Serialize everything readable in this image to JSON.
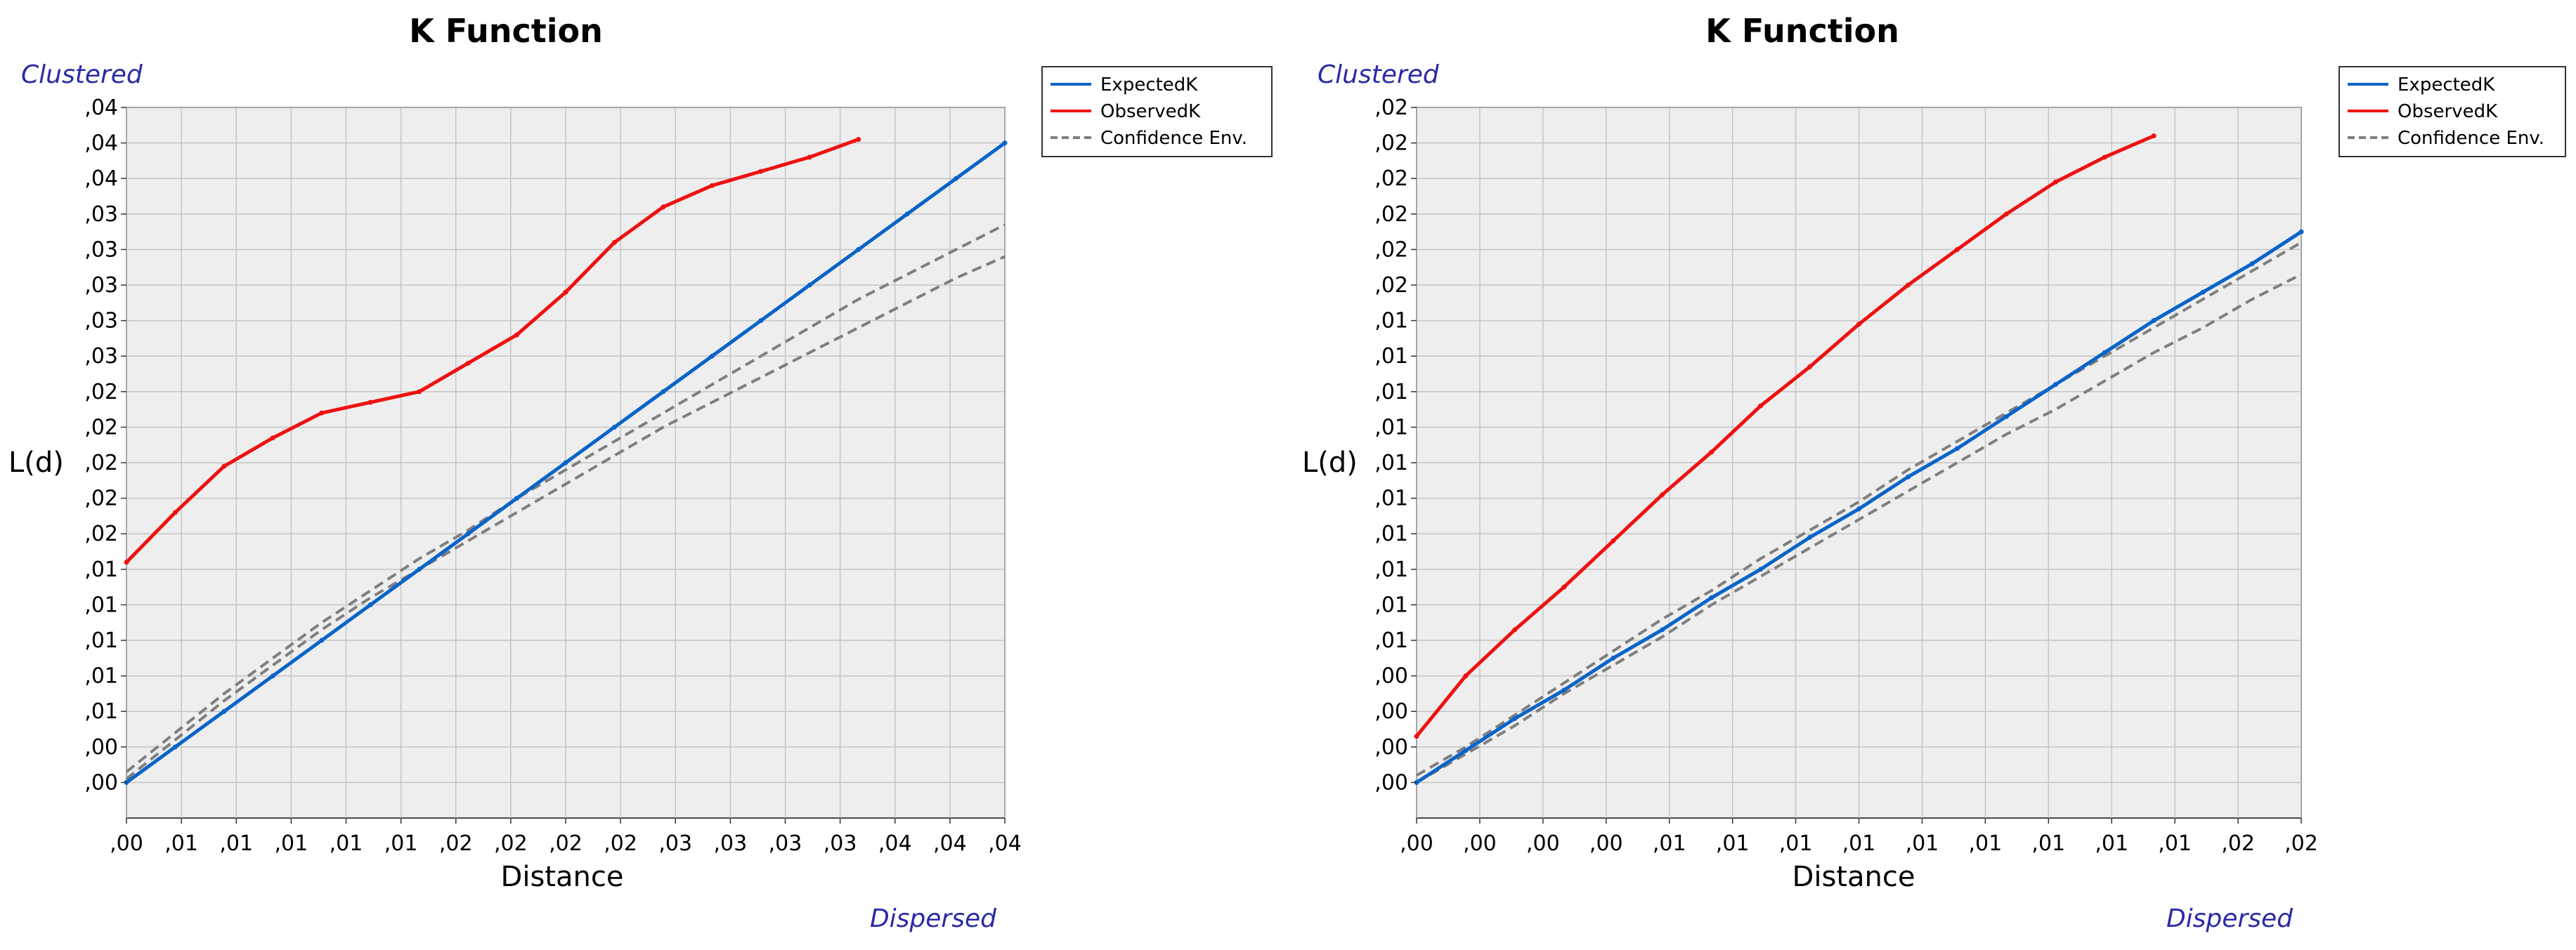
{
  "chart_data": [
    {
      "type": "line",
      "title": "K Function",
      "xlabel": "Distance",
      "ylabel": "L(d)",
      "top_annotation": "Clustered",
      "bottom_annotation": "Dispersed",
      "legend_position": "top-right",
      "grid": true,
      "colors": {
        "expected": "#0a64c8",
        "observed": "#ee1111",
        "envelope": "#7f7f7f",
        "plot_bg": "#eeeeee",
        "annotation": "#2a2aa6"
      },
      "xlim": [
        0,
        18
      ],
      "ylim": [
        -1,
        19
      ],
      "x_tick_labels": [
        ",00",
        ",01",
        ",01",
        ",01",
        ",01",
        ",01",
        ",02",
        ",02",
        ",02",
        ",02",
        ",03",
        ",03",
        ",03",
        ",03",
        ",04",
        ",04",
        ",04"
      ],
      "y_tick_labels": [
        ",00",
        ",00",
        ",01",
        ",01",
        ",01",
        ",01",
        ",01",
        ",02",
        ",02",
        ",02",
        ",02",
        ",02",
        ",03",
        ",03",
        ",03",
        ",03",
        ",03",
        ",04",
        ",04",
        ",04"
      ],
      "series": [
        {
          "name": "ExpectedK",
          "style": "solid",
          "points": [
            [
              0,
              0
            ],
            [
              1,
              1
            ],
            [
              2,
              2
            ],
            [
              3,
              3
            ],
            [
              4,
              4
            ],
            [
              5,
              5
            ],
            [
              6,
              6
            ],
            [
              7,
              7
            ],
            [
              8,
              8
            ],
            [
              9,
              9
            ],
            [
              10,
              10
            ],
            [
              11,
              11
            ],
            [
              12,
              12
            ],
            [
              13,
              13
            ],
            [
              14,
              14
            ],
            [
              15,
              15
            ],
            [
              16,
              16
            ],
            [
              17,
              17
            ],
            [
              18,
              18
            ]
          ]
        },
        {
          "name": "ObservedK",
          "style": "solid",
          "points": [
            [
              0,
              6.2
            ],
            [
              1,
              7.6
            ],
            [
              2,
              8.9
            ],
            [
              3,
              9.7
            ],
            [
              4,
              10.4
            ],
            [
              5,
              10.7
            ],
            [
              6,
              11
            ],
            [
              7,
              11.8
            ],
            [
              8,
              12.6
            ],
            [
              9,
              13.8
            ],
            [
              10,
              15.2
            ],
            [
              11,
              16.2
            ],
            [
              12,
              16.8
            ],
            [
              13,
              17.2
            ],
            [
              14,
              17.6
            ],
            [
              15,
              18.1
            ]
          ]
        },
        {
          "name": "Confidence Env.",
          "style": "dashed",
          "points": [
            [
              0,
              0.3
            ],
            [
              1,
              1.4
            ],
            [
              2,
              2.5
            ],
            [
              3,
              3.5
            ],
            [
              4,
              4.5
            ],
            [
              5,
              5.4
            ],
            [
              6,
              6.3
            ],
            [
              7,
              7.1
            ],
            [
              8,
              8
            ],
            [
              9,
              8.8
            ],
            [
              10,
              9.6
            ],
            [
              11,
              10.4
            ],
            [
              12,
              11.2
            ],
            [
              13,
              12
            ],
            [
              14,
              12.8
            ],
            [
              15,
              13.6
            ],
            [
              16,
              14.3
            ],
            [
              17,
              15
            ],
            [
              18,
              15.7
            ]
          ]
        },
        {
          "points": [
            [
              0,
              0.1
            ],
            [
              1,
              1.2
            ],
            [
              2,
              2.3
            ],
            [
              3,
              3.3
            ],
            [
              4,
              4.3
            ],
            [
              5,
              5.2
            ],
            [
              6,
              6
            ],
            [
              7,
              6.8
            ],
            [
              8,
              7.6
            ],
            [
              9,
              8.4
            ],
            [
              10,
              9.2
            ],
            [
              11,
              10
            ],
            [
              12,
              10.7
            ],
            [
              13,
              11.4
            ],
            [
              14,
              12.1
            ],
            [
              15,
              12.8
            ],
            [
              16,
              13.5
            ],
            [
              17,
              14.2
            ],
            [
              18,
              14.8
            ]
          ],
          "style": "dashed"
        }
      ]
    },
    {
      "type": "line",
      "title": "K Function",
      "xlabel": "Distance",
      "ylabel": "L(d)",
      "top_annotation": "Clustered",
      "bottom_annotation": "Dispersed",
      "legend_position": "top-right",
      "grid": true,
      "colors": {
        "expected": "#0a64c8",
        "observed": "#ee1111",
        "envelope": "#7f7f7f",
        "plot_bg": "#eeeeee",
        "annotation": "#2a2aa6"
      },
      "xlim": [
        0,
        18
      ],
      "ylim": [
        -1,
        19
      ],
      "x_tick_labels": [
        ",00",
        ",00",
        ",00",
        ",00",
        ",01",
        ",01",
        ",01",
        ",01",
        ",01",
        ",01",
        ",01",
        ",01",
        ",01",
        ",02",
        ",02"
      ],
      "y_tick_labels": [
        ",00",
        ",00",
        ",00",
        ",00",
        ",01",
        ",01",
        ",01",
        ",01",
        ",01",
        ",01",
        ",01",
        ",01",
        ",01",
        ",01",
        ",02",
        ",02",
        ",02",
        ",02",
        ",02",
        ",02"
      ],
      "series": [
        {
          "name": "ExpectedK",
          "style": "solid",
          "points": [
            [
              0,
              0
            ],
            [
              1,
              0.9
            ],
            [
              2,
              1.8
            ],
            [
              3,
              2.6
            ],
            [
              4,
              3.5
            ],
            [
              5,
              4.3
            ],
            [
              6,
              5.2
            ],
            [
              7,
              6
            ],
            [
              8,
              6.9
            ],
            [
              9,
              7.7
            ],
            [
              10,
              8.6
            ],
            [
              11,
              9.4
            ],
            [
              12,
              10.3
            ],
            [
              13,
              11.2
            ],
            [
              14,
              12.1
            ],
            [
              15,
              13
            ],
            [
              16,
              13.8
            ],
            [
              17,
              14.6
            ],
            [
              18,
              15.5
            ]
          ]
        },
        {
          "name": "ObservedK",
          "style": "solid",
          "points": [
            [
              0,
              1.3
            ],
            [
              1,
              3
            ],
            [
              2,
              4.3
            ],
            [
              3,
              5.5
            ],
            [
              4,
              6.8
            ],
            [
              5,
              8.1
            ],
            [
              6,
              9.3
            ],
            [
              7,
              10.6
            ],
            [
              8,
              11.7
            ],
            [
              9,
              12.9
            ],
            [
              10,
              14
            ],
            [
              11,
              15
            ],
            [
              12,
              16
            ],
            [
              13,
              16.9
            ],
            [
              14,
              17.6
            ],
            [
              15,
              18.2
            ]
          ]
        },
        {
          "name": "Confidence Env.",
          "style": "dashed",
          "points": [
            [
              0,
              0.2
            ],
            [
              1,
              1
            ],
            [
              2,
              1.9
            ],
            [
              3,
              2.8
            ],
            [
              4,
              3.7
            ],
            [
              5,
              4.6
            ],
            [
              6,
              5.4
            ],
            [
              7,
              6.3
            ],
            [
              8,
              7.1
            ],
            [
              9,
              7.9
            ],
            [
              10,
              8.8
            ],
            [
              11,
              9.6
            ],
            [
              12,
              10.4
            ],
            [
              13,
              11.2
            ],
            [
              14,
              12
            ],
            [
              15,
              12.8
            ],
            [
              16,
              13.6
            ],
            [
              17,
              14.4
            ],
            [
              18,
              15.2
            ]
          ]
        },
        {
          "points": [
            [
              0,
              0
            ],
            [
              1,
              0.8
            ],
            [
              2,
              1.6
            ],
            [
              3,
              2.5
            ],
            [
              4,
              3.3
            ],
            [
              5,
              4.1
            ],
            [
              6,
              5
            ],
            [
              7,
              5.8
            ],
            [
              8,
              6.6
            ],
            [
              9,
              7.4
            ],
            [
              10,
              8.2
            ],
            [
              11,
              9
            ],
            [
              12,
              9.8
            ],
            [
              13,
              10.5
            ],
            [
              14,
              11.3
            ],
            [
              15,
              12.1
            ],
            [
              16,
              12.8
            ],
            [
              17,
              13.6
            ],
            [
              18,
              14.3
            ]
          ],
          "style": "dashed"
        }
      ]
    }
  ]
}
